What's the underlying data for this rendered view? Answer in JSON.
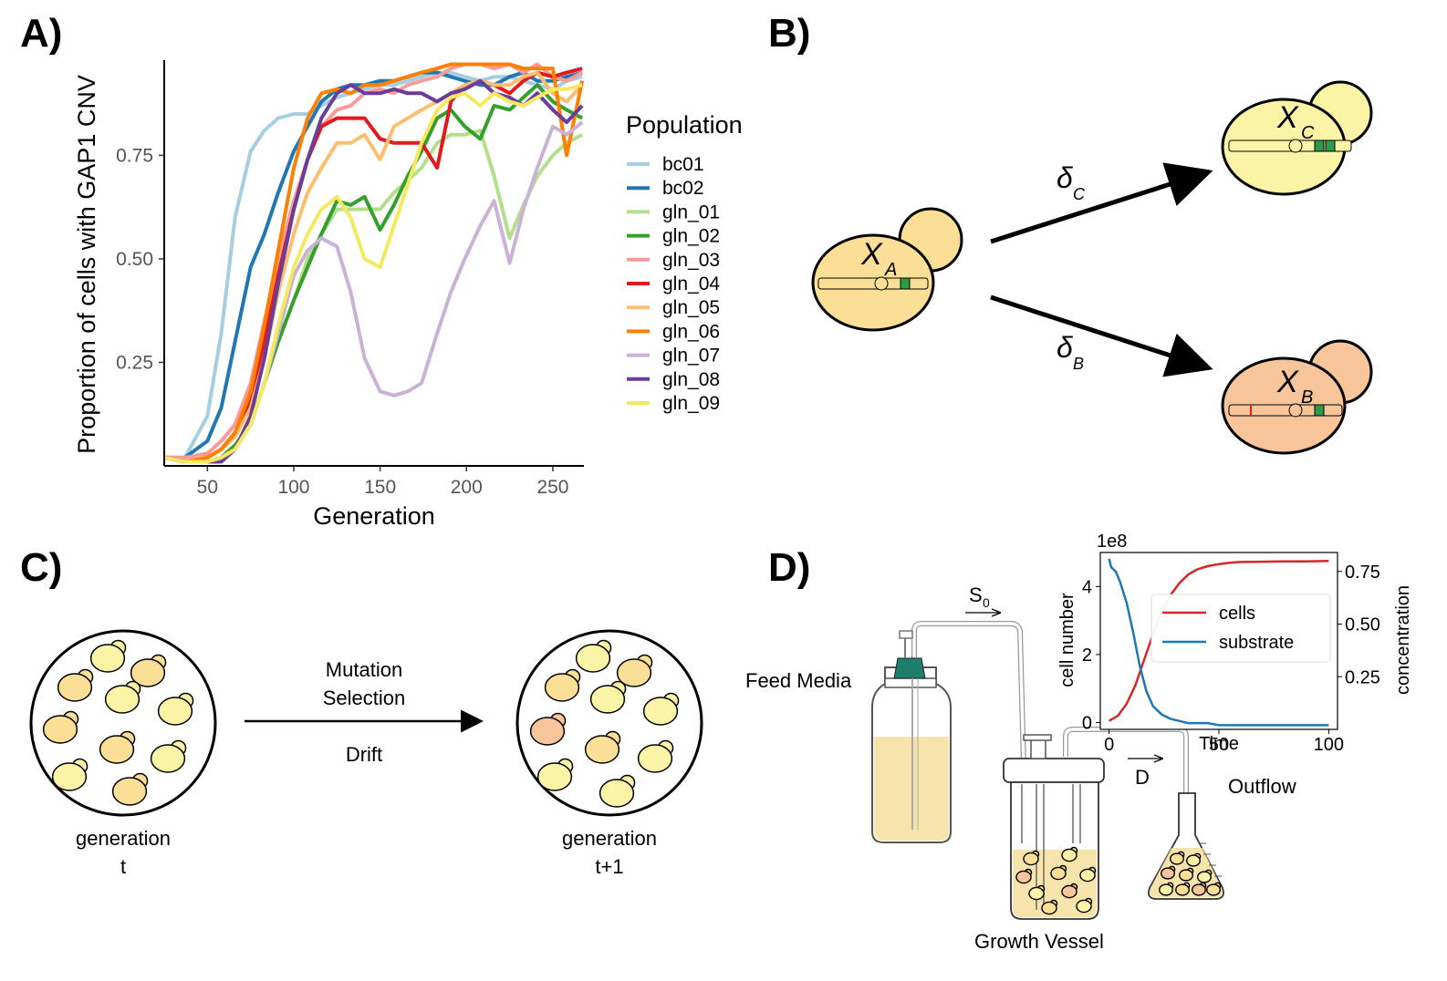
{
  "panels": {
    "a": {
      "label": "A)"
    },
    "b": {
      "label": "B)"
    },
    "c": {
      "label": "C)"
    },
    "d": {
      "label": "D)"
    }
  },
  "panel_b": {
    "cells": {
      "a": {
        "var": "X",
        "sub": "A"
      },
      "b": {
        "var": "X",
        "sub": "B"
      },
      "c": {
        "var": "X",
        "sub": "C"
      }
    },
    "rates": {
      "c": {
        "sym": "δ",
        "sub": "C"
      },
      "b": {
        "sym": "δ",
        "sub": "B"
      }
    },
    "colors": {
      "ancestral": "#fbdf96",
      "cnv": "#fbf3a6",
      "other": "#f8c49a",
      "gene": "#2e9b4a",
      "snv": "#d62728"
    }
  },
  "panel_c": {
    "process_lines": [
      "Mutation",
      "Selection",
      "Drift"
    ],
    "left_caption": [
      "generation",
      "t"
    ],
    "right_caption": [
      "generation",
      "t+1"
    ]
  },
  "panel_d": {
    "feed_label": "Feed Media",
    "vessel_label": "Growth Vessel",
    "outflow_label": "Outflow",
    "s0": {
      "sym": "S",
      "sub": "0"
    },
    "d_label": "D"
  },
  "chart_data": [
    {
      "type": "line",
      "xlabel": "Generation",
      "ylabel": "Proportion of cells with GAP1 CNV",
      "xlim": [
        25,
        268
      ],
      "ylim": [
        0.0,
        0.98
      ],
      "xticks": [
        50,
        100,
        150,
        200,
        250
      ],
      "yticks": [
        0.25,
        0.5,
        0.75
      ],
      "ytick_labels": [
        "0.25",
        "0.50",
        "0.75"
      ],
      "legend_title": "Population",
      "legend_position": "right",
      "series": [
        {
          "name": "bc01",
          "color": "#a6cee3",
          "x": [
            25,
            37,
            50,
            58,
            66,
            75,
            83,
            91,
            100,
            108,
            116,
            125,
            133,
            141,
            150,
            158,
            166,
            174,
            183,
            191,
            199,
            208,
            216,
            225,
            233,
            241,
            250,
            258,
            267
          ],
          "y": [
            0.02,
            0.02,
            0.12,
            0.32,
            0.6,
            0.76,
            0.81,
            0.84,
            0.85,
            0.85,
            0.87,
            0.89,
            0.9,
            0.91,
            0.92,
            0.92,
            0.93,
            0.94,
            0.95,
            0.95,
            0.94,
            0.93,
            0.94,
            0.94,
            0.93,
            0.92,
            0.91,
            0.93,
            0.94
          ]
        },
        {
          "name": "bc02",
          "color": "#1f78b4",
          "x": [
            25,
            37,
            50,
            58,
            66,
            75,
            83,
            91,
            100,
            108,
            116,
            125,
            133,
            141,
            150,
            158,
            166,
            174,
            183,
            191,
            199,
            208,
            216,
            225,
            233,
            241,
            250,
            258,
            267
          ],
          "y": [
            0.02,
            0.02,
            0.06,
            0.14,
            0.3,
            0.48,
            0.56,
            0.66,
            0.76,
            0.82,
            0.88,
            0.91,
            0.92,
            0.92,
            0.93,
            0.93,
            0.94,
            0.95,
            0.95,
            0.94,
            0.93,
            0.92,
            0.92,
            0.94,
            0.95,
            0.93,
            0.93,
            0.94,
            0.95
          ]
        },
        {
          "name": "gln_01",
          "color": "#b2df8a",
          "x": [
            25,
            37,
            50,
            58,
            66,
            75,
            83,
            91,
            100,
            108,
            116,
            125,
            133,
            141,
            150,
            158,
            166,
            174,
            183,
            191,
            199,
            208,
            216,
            225,
            233,
            241,
            250,
            258,
            267
          ],
          "y": [
            0.02,
            0.01,
            0.01,
            0.02,
            0.05,
            0.1,
            0.2,
            0.3,
            0.4,
            0.5,
            0.56,
            0.62,
            0.62,
            0.62,
            0.62,
            0.66,
            0.69,
            0.72,
            0.78,
            0.8,
            0.8,
            0.81,
            0.7,
            0.55,
            0.63,
            0.7,
            0.75,
            0.78,
            0.8
          ]
        },
        {
          "name": "gln_02",
          "color": "#33a02c",
          "x": [
            25,
            37,
            50,
            58,
            66,
            75,
            83,
            91,
            100,
            108,
            116,
            125,
            133,
            141,
            150,
            158,
            166,
            174,
            183,
            191,
            199,
            208,
            216,
            225,
            233,
            241,
            250,
            258,
            267
          ],
          "y": [
            0.02,
            0.01,
            0.01,
            0.02,
            0.05,
            0.1,
            0.2,
            0.3,
            0.4,
            0.48,
            0.56,
            0.64,
            0.63,
            0.65,
            0.57,
            0.63,
            0.7,
            0.76,
            0.84,
            0.86,
            0.82,
            0.79,
            0.87,
            0.86,
            0.89,
            0.92,
            0.88,
            0.86,
            0.84
          ]
        },
        {
          "name": "gln_03",
          "color": "#fb9a99",
          "x": [
            25,
            37,
            50,
            58,
            66,
            75,
            83,
            91,
            100,
            108,
            116,
            125,
            133,
            141,
            150,
            158,
            166,
            174,
            183,
            191,
            199,
            208,
            216,
            225,
            233,
            241,
            250,
            258,
            267
          ],
          "y": [
            0.02,
            0.02,
            0.03,
            0.06,
            0.1,
            0.2,
            0.35,
            0.5,
            0.64,
            0.74,
            0.82,
            0.86,
            0.87,
            0.9,
            0.91,
            0.9,
            0.92,
            0.93,
            0.94,
            0.96,
            0.97,
            0.97,
            0.96,
            0.97,
            0.95,
            0.97,
            0.94,
            0.93,
            0.95
          ]
        },
        {
          "name": "gln_04",
          "color": "#e31a1c",
          "x": [
            25,
            37,
            50,
            58,
            66,
            75,
            83,
            91,
            100,
            108,
            116,
            125,
            133,
            141,
            150,
            158,
            166,
            174,
            183,
            191,
            199,
            208,
            216,
            225,
            233,
            241,
            250,
            258,
            267
          ],
          "y": [
            0.02,
            0.01,
            0.02,
            0.04,
            0.08,
            0.16,
            0.3,
            0.46,
            0.62,
            0.74,
            0.82,
            0.84,
            0.84,
            0.84,
            0.79,
            0.78,
            0.78,
            0.78,
            0.72,
            0.88,
            0.92,
            0.93,
            0.92,
            0.9,
            0.93,
            0.95,
            0.94,
            0.95,
            0.96
          ]
        },
        {
          "name": "gln_05",
          "color": "#fdbf6f",
          "x": [
            25,
            37,
            50,
            58,
            66,
            75,
            83,
            91,
            100,
            108,
            116,
            125,
            133,
            141,
            150,
            158,
            166,
            174,
            183,
            191,
            199,
            208,
            216,
            225,
            233,
            241,
            250,
            258,
            267
          ],
          "y": [
            0.02,
            0.01,
            0.02,
            0.04,
            0.07,
            0.14,
            0.26,
            0.42,
            0.56,
            0.66,
            0.72,
            0.78,
            0.78,
            0.8,
            0.74,
            0.82,
            0.84,
            0.86,
            0.88,
            0.9,
            0.92,
            0.93,
            0.92,
            0.92,
            0.94,
            0.95,
            0.9,
            0.88,
            0.92
          ]
        },
        {
          "name": "gln_06",
          "color": "#ff7f00",
          "x": [
            25,
            37,
            50,
            58,
            66,
            75,
            83,
            91,
            100,
            108,
            116,
            125,
            133,
            141,
            150,
            158,
            166,
            174,
            183,
            191,
            199,
            208,
            216,
            225,
            233,
            241,
            250,
            258,
            267
          ],
          "y": [
            0.02,
            0.01,
            0.02,
            0.04,
            0.08,
            0.18,
            0.34,
            0.52,
            0.72,
            0.84,
            0.9,
            0.91,
            0.9,
            0.92,
            0.92,
            0.93,
            0.94,
            0.95,
            0.96,
            0.97,
            0.97,
            0.97,
            0.97,
            0.97,
            0.96,
            0.96,
            0.96,
            0.75,
            0.93
          ]
        },
        {
          "name": "gln_07",
          "color": "#cab2d6",
          "x": [
            25,
            37,
            50,
            58,
            66,
            75,
            83,
            91,
            100,
            108,
            116,
            125,
            133,
            141,
            150,
            158,
            166,
            174,
            183,
            191,
            199,
            208,
            216,
            225,
            233,
            241,
            250,
            258,
            267
          ],
          "y": [
            0.02,
            0.01,
            0.01,
            0.01,
            0.04,
            0.1,
            0.2,
            0.32,
            0.46,
            0.52,
            0.55,
            0.53,
            0.42,
            0.26,
            0.18,
            0.17,
            0.18,
            0.2,
            0.32,
            0.42,
            0.5,
            0.58,
            0.64,
            0.49,
            0.62,
            0.72,
            0.82,
            0.8,
            0.83
          ]
        },
        {
          "name": "gln_08",
          "color": "#6a3d9a",
          "x": [
            25,
            37,
            50,
            58,
            66,
            75,
            83,
            91,
            100,
            108,
            116,
            125,
            133,
            141,
            150,
            158,
            166,
            174,
            183,
            191,
            199,
            208,
            216,
            225,
            233,
            241,
            250,
            258,
            267
          ],
          "y": [
            0.02,
            0.01,
            0.01,
            0.01,
            0.04,
            0.12,
            0.26,
            0.44,
            0.62,
            0.74,
            0.84,
            0.9,
            0.92,
            0.9,
            0.9,
            0.91,
            0.9,
            0.9,
            0.88,
            0.9,
            0.91,
            0.93,
            0.9,
            0.89,
            0.87,
            0.9,
            0.86,
            0.83,
            0.87
          ]
        },
        {
          "name": "gln_09",
          "color": "#f5e960",
          "x": [
            25,
            37,
            50,
            58,
            66,
            75,
            83,
            91,
            100,
            108,
            116,
            125,
            133,
            141,
            150,
            158,
            166,
            174,
            183,
            191,
            199,
            208,
            216,
            225,
            233,
            241,
            250,
            258,
            267
          ],
          "y": [
            0.02,
            0.01,
            0.01,
            0.02,
            0.04,
            0.1,
            0.2,
            0.34,
            0.48,
            0.56,
            0.62,
            0.65,
            0.6,
            0.5,
            0.48,
            0.58,
            0.68,
            0.78,
            0.86,
            0.89,
            0.9,
            0.87,
            0.9,
            0.88,
            0.87,
            0.89,
            0.91,
            0.91,
            0.92
          ]
        }
      ]
    },
    {
      "type": "line",
      "xlabel": "Time",
      "ylabel": "cell number",
      "y2label": "concentration",
      "scale_label": "1e8",
      "xlim": [
        -4,
        104
      ],
      "ylim": [
        -0.2,
        5.0
      ],
      "y2lim": [
        0.0,
        0.84
      ],
      "xticks": [
        0,
        50,
        100
      ],
      "yticks": [
        0,
        2,
        4
      ],
      "y2ticks": [
        0.25,
        0.5,
        0.75
      ],
      "y2tick_labels": [
        "0.25",
        "0.50",
        "0.75"
      ],
      "legend_position": "center-right",
      "series": [
        {
          "name": "cells",
          "color": "#d62728",
          "axis": "left",
          "x": [
            0,
            4,
            8,
            12,
            16,
            20,
            24,
            28,
            32,
            36,
            40,
            45,
            50,
            55,
            60,
            70,
            80,
            90,
            100
          ],
          "y": [
            0.05,
            0.2,
            0.55,
            1.1,
            1.85,
            2.6,
            3.25,
            3.75,
            4.1,
            4.35,
            4.5,
            4.6,
            4.66,
            4.7,
            4.72,
            4.73,
            4.74,
            4.74,
            4.75
          ]
        },
        {
          "name": "substrate",
          "color": "#1f77b4",
          "axis": "right",
          "x": [
            0,
            1,
            3,
            5,
            8,
            11,
            14,
            17,
            20,
            24,
            28,
            32,
            36,
            40,
            45,
            50,
            60,
            70,
            80,
            90,
            100
          ],
          "y": [
            0.81,
            0.77,
            0.75,
            0.7,
            0.6,
            0.46,
            0.3,
            0.18,
            0.11,
            0.07,
            0.05,
            0.04,
            0.03,
            0.03,
            0.03,
            0.02,
            0.02,
            0.02,
            0.02,
            0.02,
            0.02
          ]
        }
      ]
    }
  ]
}
